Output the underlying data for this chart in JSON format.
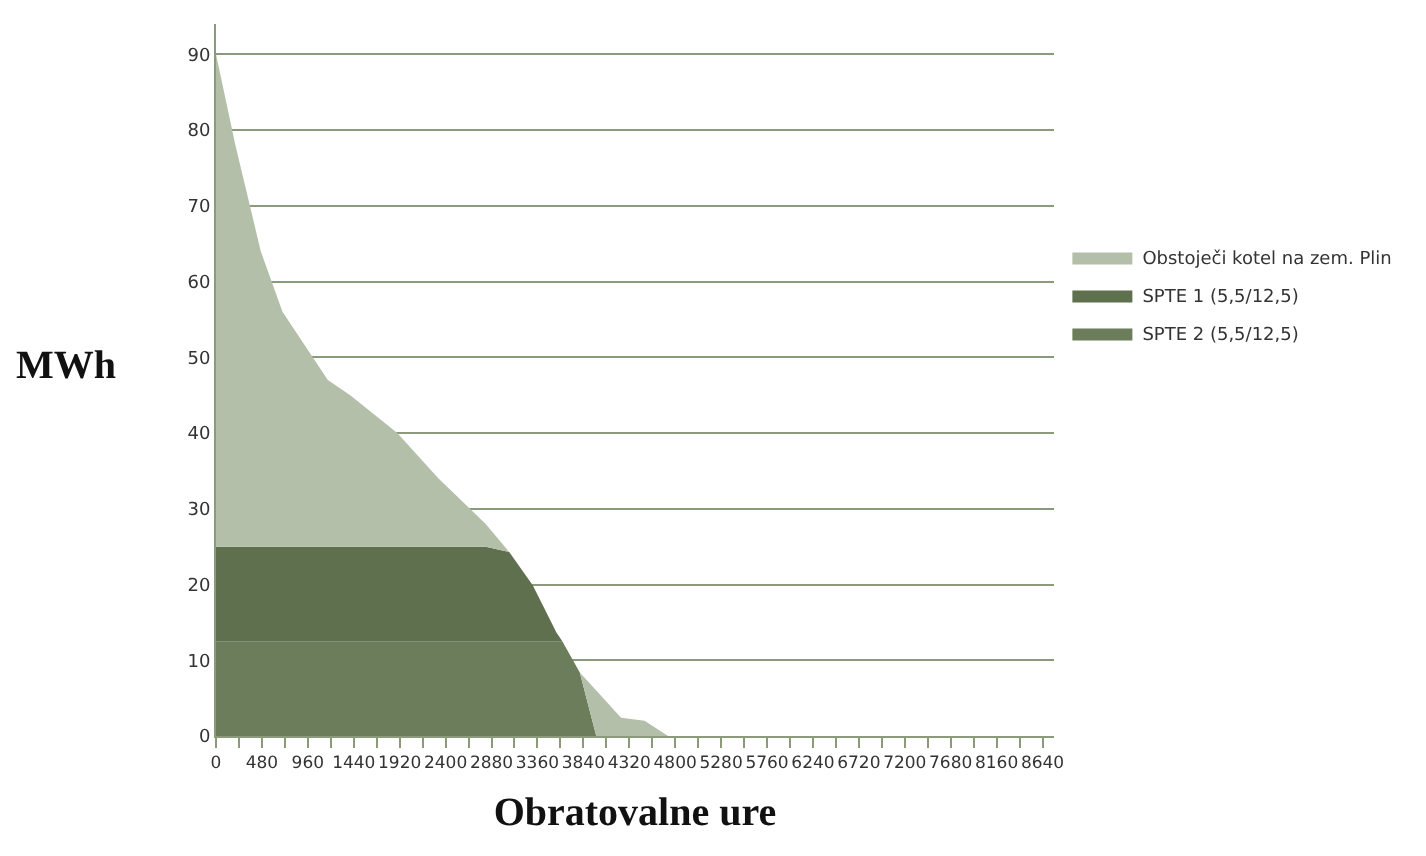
{
  "chart_data": {
    "type": "area",
    "stacked": true,
    "xlabel": "Obratovalne ure",
    "ylabel": "MWh",
    "x": [
      0,
      203,
      468,
      695,
      1169,
      1403,
      1895,
      2326,
      2819,
      3065,
      3311,
      3557,
      3620,
      3803,
      3975,
      4234,
      4480,
      4726,
      8760
    ],
    "series": [
      {
        "name": "SPTE 2 (5,5/12,5)",
        "color": "#6b7d5a",
        "values": [
          12.5,
          12.5,
          12.5,
          12.5,
          12.5,
          12.5,
          12.5,
          12.5,
          12.5,
          12.5,
          12.5,
          12.5,
          12.5,
          8.4,
          0,
          0,
          0,
          0,
          0
        ]
      },
      {
        "name": "SPTE 1 (5,5/12,5)",
        "color": "#5e704d",
        "values": [
          12.5,
          12.5,
          12.5,
          12.5,
          12.5,
          12.5,
          12.5,
          12.5,
          12.5,
          11.8,
          7.4,
          1.2,
          0,
          0,
          0,
          0,
          0,
          0,
          0
        ]
      },
      {
        "name": "Obstoječi kotel na zem. Plin",
        "color": "#b3bfa9",
        "values": [
          65,
          53,
          39,
          31,
          22,
          20,
          15,
          9,
          3,
          0,
          0,
          0,
          0,
          0,
          6,
          2.4,
          2,
          0,
          0
        ]
      }
    ],
    "xlim": [
      0,
      8760
    ],
    "xticks": [
      0,
      {
        "value": 240,
        "label": null
      },
      480,
      {
        "value": 720,
        "label": null
      },
      960,
      {
        "value": 1200,
        "label": null
      },
      1440,
      {
        "value": 1680,
        "label": null
      },
      1920,
      {
        "value": 2160,
        "label": null
      },
      2400,
      {
        "value": 2640,
        "label": null
      },
      2880,
      {
        "value": 3120,
        "label": null
      },
      3360,
      {
        "value": 3600,
        "label": null
      },
      3840,
      {
        "value": 4080,
        "label": null
      },
      4320,
      {
        "value": 4560,
        "label": null
      },
      4800,
      {
        "value": 5040,
        "label": null
      },
      5280,
      {
        "value": 5520,
        "label": null
      },
      5760,
      {
        "value": 6000,
        "label": null
      },
      6240,
      {
        "value": 6480,
        "label": null
      },
      6720,
      {
        "value": 6960,
        "label": null
      },
      7200,
      {
        "value": 7440,
        "label": null
      },
      7680,
      {
        "value": 7920,
        "label": null
      },
      8160,
      {
        "value": 8400,
        "label": null
      },
      8640
    ],
    "ylim": [
      0,
      94
    ],
    "yticks": [
      0,
      10,
      20,
      30,
      40,
      50,
      60,
      70,
      80,
      90
    ],
    "grid": "y",
    "legend": "right"
  }
}
